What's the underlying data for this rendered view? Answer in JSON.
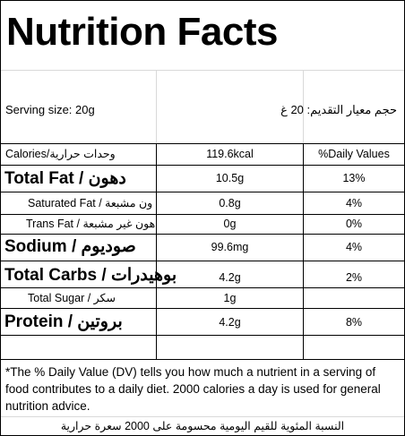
{
  "title": "Nutrition Facts",
  "serving": {
    "en": "Serving size: 20g",
    "ar": "حجم معيار التقديم: 20 غ"
  },
  "header_row": {
    "label": "Calories/وحدات حرارية",
    "value": "119.6kcal",
    "dv": "%Daily Values"
  },
  "rows": [
    {
      "label": "Total Fat / دهون",
      "value": "10.5g",
      "dv": "13%"
    },
    {
      "label": "Saturated Fat / ون مشبعة",
      "value": "0.8g",
      "dv": "4%"
    },
    {
      "label": "Trans Fat / هون غير مشبعة",
      "value": "0g",
      "dv": "0%"
    },
    {
      "label": "Sodium / صوديوم",
      "value": "99.6mg",
      "dv": "4%"
    },
    {
      "label": "Total Carbs / بوهيدرات",
      "value": "4.2g",
      "dv": "2%"
    },
    {
      "label": "Total Sugar / سكر",
      "value": "1g",
      "dv": ""
    },
    {
      "label": "Protein / بروتين",
      "value": "4.2g",
      "dv": "8%"
    }
  ],
  "footnote": {
    "en": "*The % Daily Value (DV) tells you how much a nutrient in a serving of food contributes to a daily diet. 2000 calories a day is used for general nutrition advice.",
    "ar": "النسبة المئوية للقيم اليومية محسومة على 2000 سعرة حرارية"
  }
}
